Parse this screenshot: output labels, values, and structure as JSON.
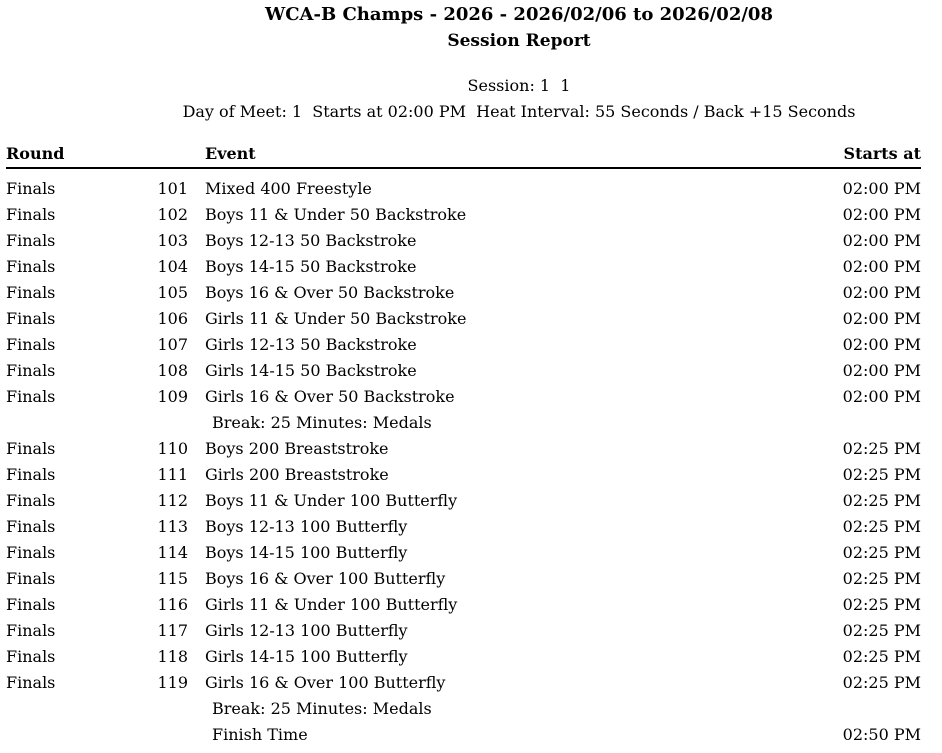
{
  "header": {
    "title_line1": "WCA-B Champs - 2026 - 2026/02/06 to 2026/02/08",
    "title_line2": "Session Report",
    "session_line": "Session: 1  1",
    "day_line": "Day of Meet: 1  Starts at 02:00 PM  Heat Interval: 55 Seconds / Back +15 Seconds"
  },
  "table": {
    "headers": {
      "round": "Round",
      "event": "Event",
      "starts_at": "Starts at"
    },
    "rows": [
      {
        "type": "event",
        "round": "Finals",
        "num": "101",
        "event": "Mixed 400 Freestyle",
        "time": "02:00 PM"
      },
      {
        "type": "event",
        "round": "Finals",
        "num": "102",
        "event": "Boys 11 & Under 50 Backstroke",
        "time": "02:00 PM"
      },
      {
        "type": "event",
        "round": "Finals",
        "num": "103",
        "event": "Boys 12-13 50 Backstroke",
        "time": "02:00 PM"
      },
      {
        "type": "event",
        "round": "Finals",
        "num": "104",
        "event": "Boys 14-15 50 Backstroke",
        "time": "02:00 PM"
      },
      {
        "type": "event",
        "round": "Finals",
        "num": "105",
        "event": "Boys 16 & Over 50 Backstroke",
        "time": "02:00 PM"
      },
      {
        "type": "event",
        "round": "Finals",
        "num": "106",
        "event": "Girls 11 & Under 50 Backstroke",
        "time": "02:00 PM"
      },
      {
        "type": "event",
        "round": "Finals",
        "num": "107",
        "event": "Girls 12-13 50 Backstroke",
        "time": "02:00 PM"
      },
      {
        "type": "event",
        "round": "Finals",
        "num": "108",
        "event": "Girls 14-15 50 Backstroke",
        "time": "02:00 PM"
      },
      {
        "type": "event",
        "round": "Finals",
        "num": "109",
        "event": "Girls 16 & Over 50 Backstroke",
        "time": "02:00 PM"
      },
      {
        "type": "break",
        "round": "",
        "num": "",
        "event": "Break: 25 Minutes: Medals",
        "time": ""
      },
      {
        "type": "event",
        "round": "Finals",
        "num": "110",
        "event": "Boys 200 Breaststroke",
        "time": "02:25 PM"
      },
      {
        "type": "event",
        "round": "Finals",
        "num": "111",
        "event": "Girls 200 Breaststroke",
        "time": "02:25 PM"
      },
      {
        "type": "event",
        "round": "Finals",
        "num": "112",
        "event": "Boys 11 & Under 100 Butterfly",
        "time": "02:25 PM"
      },
      {
        "type": "event",
        "round": "Finals",
        "num": "113",
        "event": "Boys 12-13 100 Butterfly",
        "time": "02:25 PM"
      },
      {
        "type": "event",
        "round": "Finals",
        "num": "114",
        "event": "Boys 14-15 100 Butterfly",
        "time": "02:25 PM"
      },
      {
        "type": "event",
        "round": "Finals",
        "num": "115",
        "event": "Boys 16 & Over 100 Butterfly",
        "time": "02:25 PM"
      },
      {
        "type": "event",
        "round": "Finals",
        "num": "116",
        "event": "Girls 11 & Under 100 Butterfly",
        "time": "02:25 PM"
      },
      {
        "type": "event",
        "round": "Finals",
        "num": "117",
        "event": "Girls 12-13 100 Butterfly",
        "time": "02:25 PM"
      },
      {
        "type": "event",
        "round": "Finals",
        "num": "118",
        "event": "Girls 14-15 100 Butterfly",
        "time": "02:25 PM"
      },
      {
        "type": "event",
        "round": "Finals",
        "num": "119",
        "event": "Girls 16 & Over 100 Butterfly",
        "time": "02:25 PM"
      },
      {
        "type": "break",
        "round": "",
        "num": "",
        "event": "Break: 25 Minutes: Medals",
        "time": ""
      },
      {
        "type": "finish",
        "round": "",
        "num": "",
        "event": "Finish Time",
        "time": "02:50 PM"
      }
    ]
  }
}
